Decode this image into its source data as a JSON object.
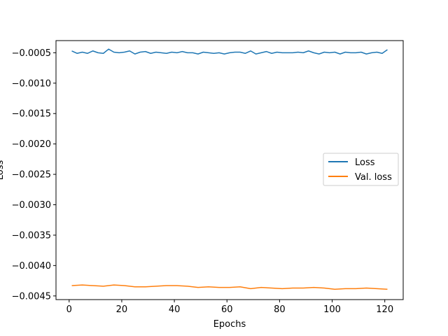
{
  "chart_data": {
    "type": "line",
    "xlabel": "Epochs",
    "ylabel": "Loss",
    "xlim": [
      -5,
      127
    ],
    "ylim": [
      -0.00456,
      -0.0003
    ],
    "xticks": [
      0,
      20,
      40,
      60,
      80,
      100,
      120
    ],
    "xtick_labels": [
      "0",
      "20",
      "40",
      "60",
      "80",
      "100",
      "120"
    ],
    "yticks": [
      -0.0005,
      -0.001,
      -0.0015,
      -0.002,
      -0.0025,
      -0.003,
      -0.0035,
      -0.004,
      -0.0045
    ],
    "ytick_labels": [
      "−0.0005",
      "−0.0010",
      "−0.0015",
      "−0.0020",
      "−0.0025",
      "−0.0030",
      "−0.0035",
      "−0.0040",
      "−0.0045"
    ],
    "grid": false,
    "legend_position": "center-right",
    "series": [
      {
        "name": "Loss",
        "color": "#1f77b4",
        "x": [
          1,
          3,
          5,
          7,
          9,
          11,
          13,
          15,
          17,
          19,
          21,
          23,
          25,
          27,
          29,
          31,
          33,
          35,
          37,
          39,
          41,
          43,
          45,
          47,
          49,
          51,
          53,
          55,
          57,
          59,
          61,
          63,
          65,
          67,
          69,
          71,
          73,
          75,
          77,
          79,
          81,
          83,
          85,
          87,
          89,
          91,
          93,
          95,
          97,
          99,
          101,
          103,
          105,
          107,
          109,
          111,
          113,
          115,
          117,
          119,
          121
        ],
        "y": [
          -0.00047,
          -0.00051,
          -0.00049,
          -0.00051,
          -0.00047,
          -0.0005,
          -0.00051,
          -0.00044,
          -0.00049,
          -0.0005,
          -0.00049,
          -0.00047,
          -0.00052,
          -0.00049,
          -0.00048,
          -0.00051,
          -0.00049,
          -0.0005,
          -0.00051,
          -0.00049,
          -0.0005,
          -0.00048,
          -0.0005,
          -0.0005,
          -0.00052,
          -0.00049,
          -0.0005,
          -0.00051,
          -0.0005,
          -0.00052,
          -0.0005,
          -0.00049,
          -0.00049,
          -0.00051,
          -0.00047,
          -0.00052,
          -0.0005,
          -0.00048,
          -0.00051,
          -0.00049,
          -0.0005,
          -0.0005,
          -0.0005,
          -0.00049,
          -0.0005,
          -0.00047,
          -0.0005,
          -0.00052,
          -0.00049,
          -0.0005,
          -0.00049,
          -0.00052,
          -0.00049,
          -0.0005,
          -0.0005,
          -0.00049,
          -0.00052,
          -0.0005,
          -0.00049,
          -0.00051,
          -0.00045
        ]
      },
      {
        "name": "Val. loss",
        "color": "#ff7f0e",
        "x": [
          1,
          5,
          9,
          13,
          17,
          21,
          25,
          29,
          33,
          37,
          41,
          45,
          49,
          53,
          57,
          61,
          65,
          69,
          73,
          77,
          81,
          85,
          89,
          93,
          97,
          101,
          105,
          109,
          113,
          117,
          121
        ],
        "y": [
          -0.00433,
          -0.00432,
          -0.00433,
          -0.00434,
          -0.00432,
          -0.00433,
          -0.00435,
          -0.00435,
          -0.00434,
          -0.00433,
          -0.00433,
          -0.00434,
          -0.00436,
          -0.00435,
          -0.00436,
          -0.00436,
          -0.00435,
          -0.00438,
          -0.00436,
          -0.00437,
          -0.00438,
          -0.00437,
          -0.00437,
          -0.00436,
          -0.00437,
          -0.00439,
          -0.00438,
          -0.00438,
          -0.00437,
          -0.00438,
          -0.00439
        ]
      }
    ]
  }
}
